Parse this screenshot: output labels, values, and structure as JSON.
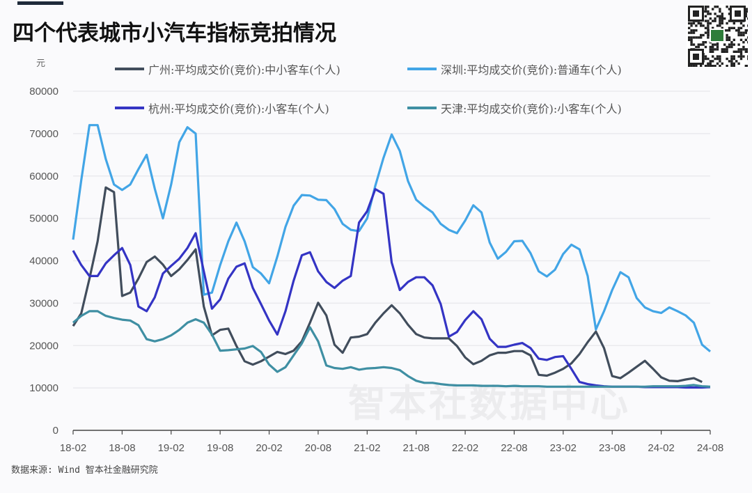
{
  "title": "四个代表城市小汽车指标竞拍情况",
  "unit": "元",
  "source": "数据来源: Wind 智本社金融研究院",
  "watermark": "智本社数据中心",
  "chart_data": {
    "type": "line",
    "title": "四个代表城市小汽车指标竞拍情况",
    "ylabel": "元",
    "ylim": [
      0,
      80000
    ],
    "yticks": [
      "0",
      "10000",
      "20000",
      "30000",
      "40000",
      "50000",
      "60000",
      "70000",
      "80000"
    ],
    "xticks": [
      "18-02",
      "18-08",
      "19-02",
      "19-08",
      "20-02",
      "20-08",
      "21-02",
      "21-08",
      "22-02",
      "22-08",
      "23-02",
      "23-08",
      "24-02",
      "24-08"
    ],
    "x": [
      "18-02",
      "18-03",
      "18-04",
      "18-05",
      "18-06",
      "18-07",
      "18-08",
      "18-09",
      "18-10",
      "18-11",
      "18-12",
      "19-01",
      "19-02",
      "19-03",
      "19-04",
      "19-05",
      "19-06",
      "19-07",
      "19-08",
      "19-09",
      "19-10",
      "19-11",
      "19-12",
      "20-01",
      "20-02",
      "20-03",
      "20-04",
      "20-05",
      "20-06",
      "20-07",
      "20-08",
      "20-09",
      "20-10",
      "20-11",
      "20-12",
      "21-01",
      "21-02",
      "21-03",
      "21-04",
      "21-05",
      "21-06",
      "21-07",
      "21-08",
      "21-09",
      "21-10",
      "21-11",
      "21-12",
      "22-01",
      "22-02",
      "22-03",
      "22-04",
      "22-05",
      "22-06",
      "22-07",
      "22-08",
      "22-09",
      "22-10",
      "22-11",
      "22-12",
      "23-01",
      "23-02",
      "23-03",
      "23-04",
      "23-05",
      "23-06",
      "23-07",
      "23-08",
      "23-09",
      "23-10",
      "23-11",
      "23-12",
      "24-01",
      "24-02",
      "24-03",
      "24-04",
      "24-05",
      "24-06",
      "24-07",
      "24-08"
    ],
    "grid": true,
    "legend_position": "top",
    "series": [
      {
        "name": "广州:平均成交价(竞价):中小客车(个人)",
        "color": "#414d5c",
        "values": [
          24600,
          27600,
          35800,
          44600,
          57300,
          56200,
          31700,
          32500,
          35800,
          39700,
          41000,
          39100,
          36400,
          38000,
          40200,
          42700,
          29200,
          22400,
          23700,
          24000,
          19900,
          16300,
          15500,
          16300,
          17400,
          18500,
          18000,
          18800,
          21000,
          25400,
          30100,
          27100,
          20200,
          18300,
          21900,
          22100,
          22700,
          25400,
          27600,
          29500,
          27600,
          24900,
          22700,
          21900,
          21700,
          21700,
          21700,
          19900,
          17200,
          15600,
          16400,
          17700,
          18300,
          18300,
          18700,
          18700,
          17700,
          13100,
          12900,
          13600,
          14500,
          15800,
          18000,
          20800,
          23300,
          19400,
          12800,
          12300,
          13600,
          15000,
          16400,
          14500,
          12500,
          11700,
          11600,
          12000,
          12300,
          11400,
          null
        ]
      },
      {
        "name": "深圳:平均成交价(竞价):普通车(个人)",
        "color": "#42a5e6",
        "values": [
          45000,
          59000,
          72000,
          72000,
          64000,
          58000,
          56700,
          58000,
          61600,
          65000,
          57000,
          50000,
          58000,
          68000,
          71500,
          70000,
          32000,
          32500,
          39000,
          44600,
          49000,
          44600,
          38500,
          37000,
          34700,
          41000,
          48000,
          53000,
          55500,
          55400,
          54400,
          54300,
          52200,
          48700,
          47300,
          47000,
          50000,
          57700,
          64300,
          69800,
          65900,
          58800,
          54400,
          52800,
          51400,
          48700,
          47300,
          46500,
          49500,
          53100,
          51400,
          44300,
          40500,
          42100,
          44600,
          44700,
          41800,
          37500,
          36300,
          37900,
          41600,
          43800,
          42700,
          36400,
          23800,
          28100,
          33100,
          37300,
          36100,
          31200,
          29000,
          28100,
          27700,
          29000,
          28100,
          27100,
          25400,
          20200,
          18600
        ]
      },
      {
        "name": "杭州:平均成交价(竞价):小客车(个人)",
        "color": "#3434c4",
        "values": [
          42400,
          39000,
          36400,
          36400,
          39400,
          41300,
          43000,
          39000,
          29200,
          28100,
          31400,
          37000,
          38800,
          40500,
          43000,
          46500,
          37500,
          28700,
          30900,
          35800,
          38600,
          39400,
          33600,
          29800,
          25900,
          22600,
          28100,
          35300,
          41300,
          42000,
          37500,
          35000,
          33600,
          35300,
          36400,
          49000,
          51700,
          56900,
          55800,
          39600,
          33100,
          35000,
          36100,
          36100,
          34200,
          29800,
          22100,
          23200,
          26000,
          28100,
          26200,
          21600,
          19700,
          19700,
          20200,
          20600,
          19400,
          16900,
          16600,
          17300,
          17500,
          14500,
          11400,
          10900,
          10600,
          10400,
          10300,
          10300,
          10300,
          10300,
          10200,
          10200,
          10200,
          10200,
          10200,
          10100,
          10100,
          10100,
          10200
        ]
      },
      {
        "name": "天津:平均成交价(竞价):小客车(个人)",
        "color": "#3f8fa3",
        "values": [
          25400,
          27000,
          28100,
          28100,
          27000,
          26500,
          26100,
          25900,
          24800,
          21500,
          21000,
          21500,
          22400,
          23700,
          25400,
          26200,
          25400,
          22600,
          18800,
          18900,
          19100,
          19300,
          19900,
          18500,
          15500,
          13800,
          14900,
          17700,
          20500,
          24300,
          21000,
          15300,
          14700,
          14500,
          14900,
          14300,
          14600,
          14700,
          14900,
          14700,
          14200,
          12800,
          11700,
          11200,
          11200,
          10900,
          10700,
          10600,
          10600,
          10600,
          10500,
          10500,
          10500,
          10400,
          10500,
          10400,
          10400,
          10400,
          10300,
          10300,
          10300,
          10300,
          10300,
          10300,
          10300,
          10300,
          10300,
          10300,
          10300,
          10300,
          10300,
          10400,
          10400,
          10400,
          10400,
          10500,
          10700,
          10400,
          10300
        ]
      }
    ]
  }
}
